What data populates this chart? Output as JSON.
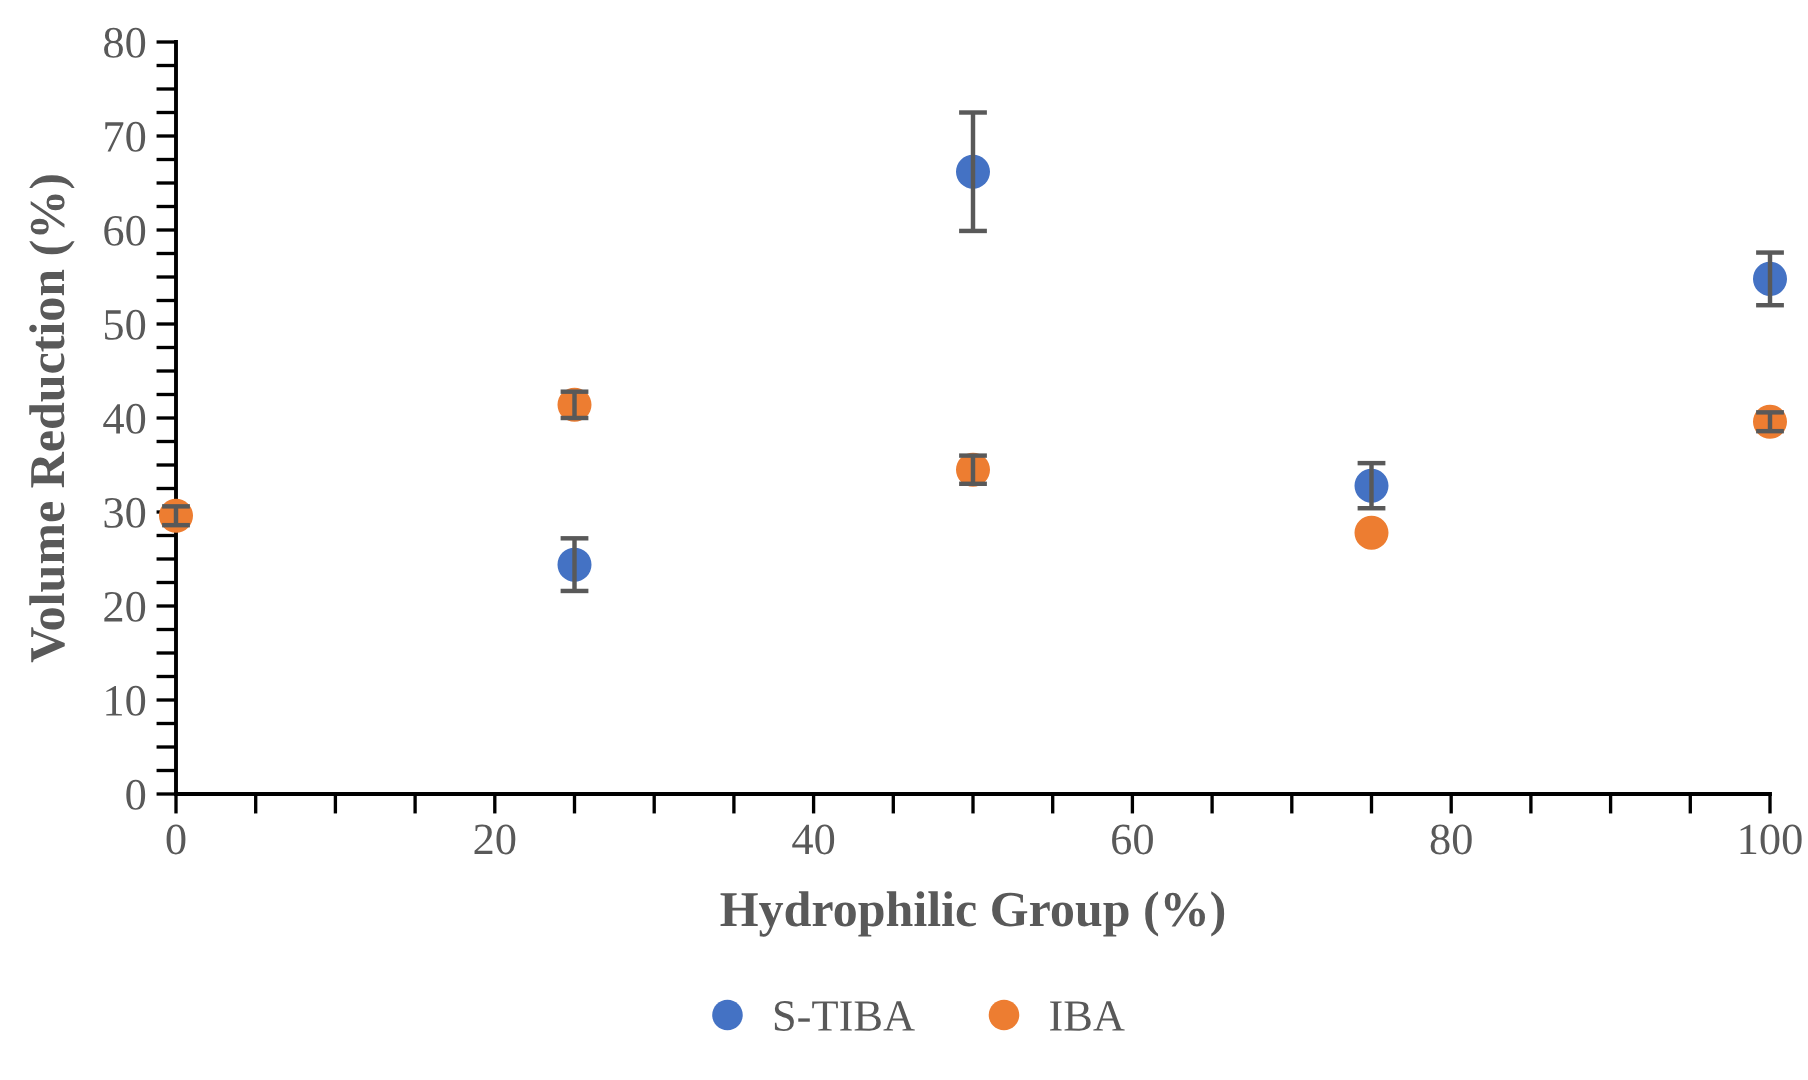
{
  "chart_data": {
    "type": "scatter",
    "xlabel": "Hydrophilic Group (%)",
    "ylabel": "Volume Reduction (%)",
    "x": [
      0,
      25,
      50,
      75,
      100
    ],
    "series": [
      {
        "name": "S-TIBA",
        "color": "#4472c4",
        "values": [
          null,
          24.4,
          66.2,
          32.8,
          54.8
        ],
        "errors": [
          null,
          2.8,
          6.3,
          2.4,
          2.8
        ]
      },
      {
        "name": "IBA",
        "color": "#ed7d31",
        "values": [
          29.6,
          41.4,
          34.5,
          27.8,
          39.6
        ],
        "errors": [
          1,
          1.4,
          1.5,
          null,
          1
        ]
      }
    ],
    "xlim": [
      0,
      100
    ],
    "ylim": [
      0,
      80
    ],
    "xticks": [
      0,
      {
        "value": 5,
        "label": null
      },
      {
        "value": 10,
        "label": null
      },
      {
        "value": 15,
        "label": null
      },
      20,
      {
        "value": 25,
        "label": null
      },
      {
        "value": 30,
        "label": null
      },
      {
        "value": 35,
        "label": null
      },
      40,
      {
        "value": 45,
        "label": null
      },
      {
        "value": 50,
        "label": null
      },
      {
        "value": 55,
        "label": null
      },
      60,
      {
        "value": 65,
        "label": null
      },
      {
        "value": 70,
        "label": null
      },
      {
        "value": 75,
        "label": null
      },
      80,
      {
        "value": 85,
        "label": null
      },
      {
        "value": 90,
        "label": null
      },
      {
        "value": 95,
        "label": null
      },
      100
    ],
    "yticks": [
      0,
      {
        "value": 2.5,
        "label": null
      },
      {
        "value": 5,
        "label": null
      },
      {
        "value": 7.5,
        "label": null
      },
      10,
      {
        "value": 12.5,
        "label": null
      },
      {
        "value": 15,
        "label": null
      },
      {
        "value": 17.5,
        "label": null
      },
      20,
      {
        "value": 22.5,
        "label": null
      },
      {
        "value": 25,
        "label": null
      },
      {
        "value": 27.5,
        "label": null
      },
      30,
      {
        "value": 32.5,
        "label": null
      },
      {
        "value": 35,
        "label": null
      },
      {
        "value": 37.5,
        "label": null
      },
      40,
      {
        "value": 42.5,
        "label": null
      },
      {
        "value": 45,
        "label": null
      },
      {
        "value": 47.5,
        "label": null
      },
      50,
      {
        "value": 52.5,
        "label": null
      },
      {
        "value": 55,
        "label": null
      },
      {
        "value": 57.5,
        "label": null
      },
      60,
      {
        "value": 62.5,
        "label": null
      },
      {
        "value": 65,
        "label": null
      },
      {
        "value": 67.5,
        "label": null
      },
      70,
      {
        "value": 72.5,
        "label": null
      },
      {
        "value": 75,
        "label": null
      },
      {
        "value": 77.5,
        "label": null
      },
      80
    ],
    "grid": false,
    "legend": "bottom",
    "marker": "circle"
  }
}
